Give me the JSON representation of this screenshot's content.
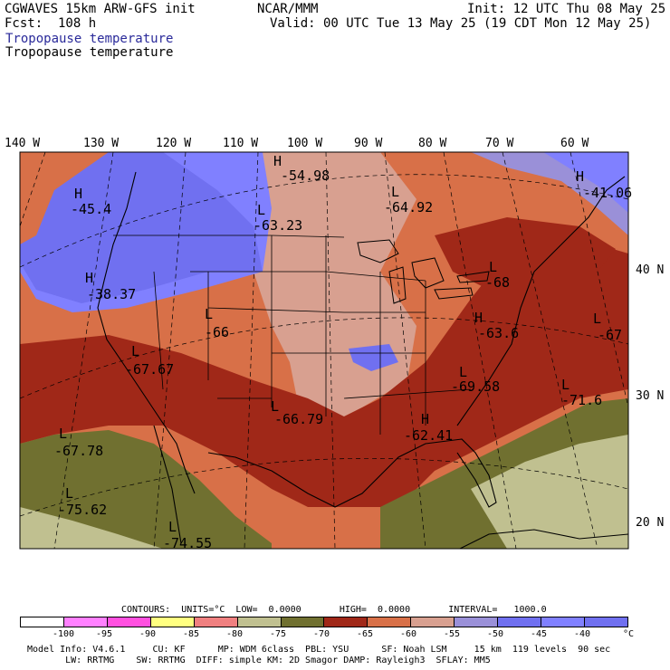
{
  "header": {
    "model": "CGWAVES 15km ARW-GFS init",
    "fcst": "Fcst:  108 h",
    "org": "NCAR/MMM",
    "init": "Init: 12 UTC Thu 08 May 25",
    "valid": "Valid: 00 UTC Tue 13 May 25 (19 CDT Mon 12 May 25)",
    "field_title_1": "Tropopause temperature",
    "field_title_2": "Tropopause temperature"
  },
  "lon_labels": [
    "140 W",
    "130 W",
    "120 W",
    "110 W",
    "100 W",
    "90 W",
    "80 W",
    "70 W",
    "60 W"
  ],
  "lat_labels": [
    "40 N",
    "30 N",
    "20 N"
  ],
  "map_labels": [
    {
      "type": "H",
      "value": "-54.98"
    },
    {
      "type": "H",
      "value": "-41.06"
    },
    {
      "type": "H",
      "value": "-45.4"
    },
    {
      "type": "L",
      "value": "-64.92"
    },
    {
      "type": "L",
      "value": "-63.23"
    },
    {
      "type": "H",
      "value": "-38.37"
    },
    {
      "type": "L",
      "value": "-68"
    },
    {
      "type": "L",
      "value": "-66"
    },
    {
      "type": "H",
      "value": "-63.6"
    },
    {
      "type": "L",
      "value": "-67"
    },
    {
      "type": "L",
      "value": "-67.67"
    },
    {
      "type": "L",
      "value": "-69.58"
    },
    {
      "type": "L",
      "value": "-71.6"
    },
    {
      "type": "L",
      "value": "-66.79"
    },
    {
      "type": "H",
      "value": "-62.41"
    },
    {
      "type": "L",
      "value": "-67.78"
    },
    {
      "type": "L",
      "value": "-75.62"
    },
    {
      "type": "L",
      "value": "-74.55"
    }
  ],
  "footer": {
    "contours": "CONTOURS:  UNITS=°C  LOW=  0.0000       HIGH=  0.0000       INTERVAL=   1000.0",
    "unit": "°C",
    "legend": [
      {
        "label": "",
        "color": "#ffffff"
      },
      {
        "label": "-100",
        "color": "#ff80ff"
      },
      {
        "label": "-95",
        "color": "#ff50e0"
      },
      {
        "label": "-90",
        "color": "#ffff80"
      },
      {
        "label": "-85",
        "color": "#f08080"
      },
      {
        "label": "-80",
        "color": "#c0c090"
      },
      {
        "label": "-75",
        "color": "#707030"
      },
      {
        "label": "-70",
        "color": "#a02818"
      },
      {
        "label": "-65",
        "color": "#d87048"
      },
      {
        "label": "-60",
        "color": "#d8a090"
      },
      {
        "label": "-55",
        "color": "#9a90d8"
      },
      {
        "label": "-50",
        "color": "#7070f0"
      },
      {
        "label": "-45",
        "color": "#8080ff"
      },
      {
        "label": "-40",
        "color": ""
      }
    ],
    "info_1": "Model Info: V4.6.1     CU: KF      MP: WDM 6class  PBL: YSU      SF: Noah LSM     15 km  119 levels  90 sec",
    "info_2": "       LW: RRTMG    SW: RRTMG  DIFF: simple KM: 2D Smagor DAMP: Rayleigh3  SFLAY: MM5"
  }
}
